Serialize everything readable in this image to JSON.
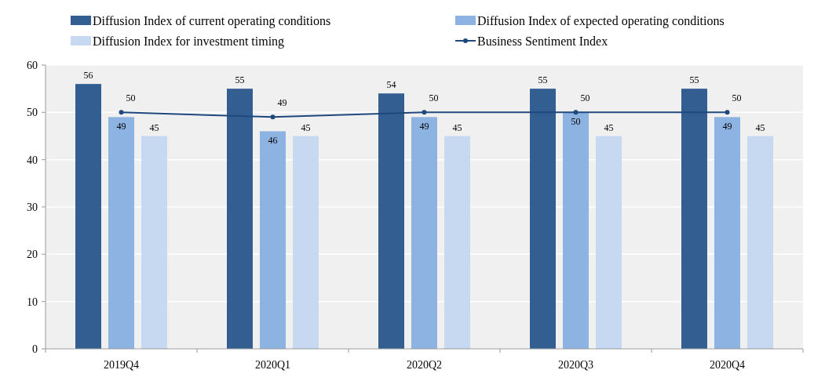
{
  "chart_data": {
    "type": "bar",
    "categories": [
      "2019Q4",
      "2020Q1",
      "2020Q2",
      "2020Q3",
      "2020Q4"
    ],
    "series": [
      {
        "name": "Diffusion Index of current operating conditions",
        "color": "#335e91",
        "values": [
          56,
          55,
          54,
          55,
          55
        ]
      },
      {
        "name": "Diffusion Index of expected operating conditions",
        "color": "#8db3e2",
        "values": [
          49,
          46,
          49,
          50,
          49
        ]
      },
      {
        "name": "Diffusion Index for investment timing",
        "color": "#c6d9f1",
        "values": [
          45,
          45,
          45,
          45,
          45
        ]
      },
      {
        "name": "Business Sentiment Index",
        "type": "line",
        "color": "#1f497d",
        "marker": "circle",
        "values": [
          50,
          49,
          50,
          50,
          50
        ]
      }
    ],
    "ylim": [
      0,
      60
    ],
    "yticks": [
      0,
      10,
      20,
      30,
      40,
      50,
      60
    ],
    "grid": "y",
    "legend": "top",
    "data_labels": true
  }
}
